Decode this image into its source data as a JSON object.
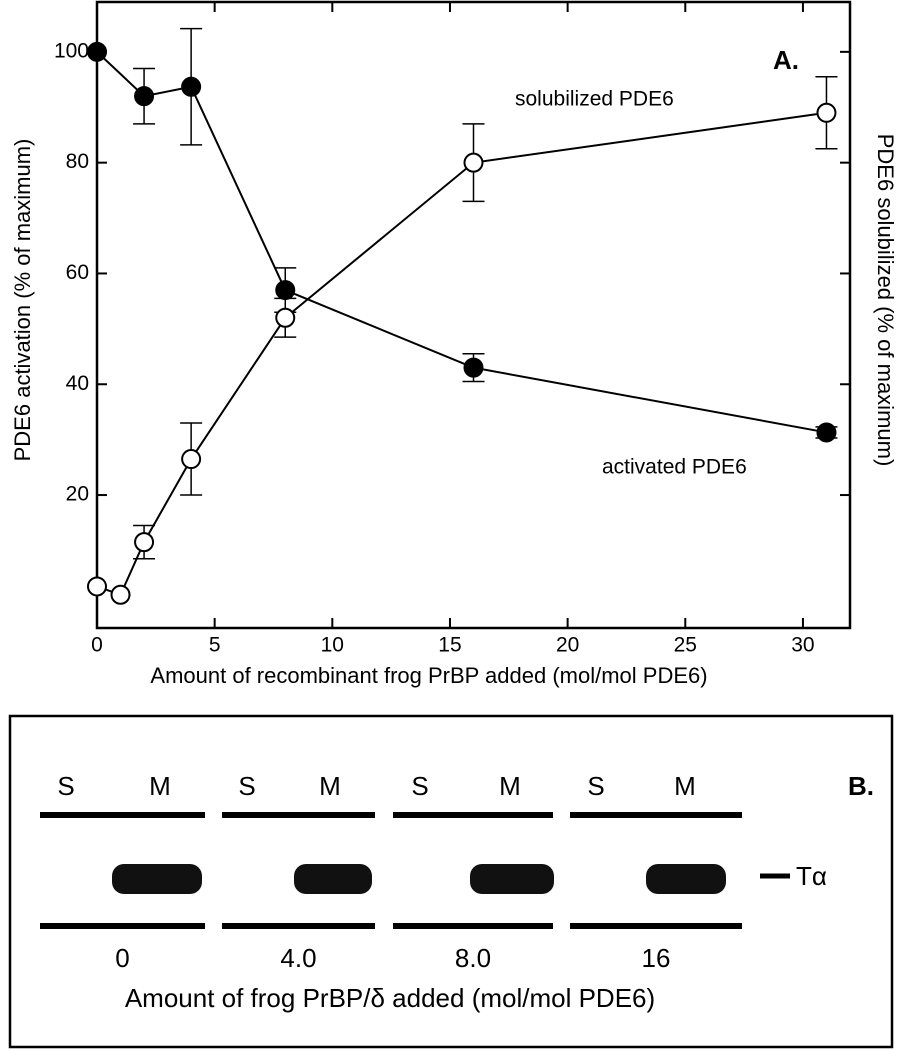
{
  "chart_data": {
    "type": "line",
    "xlabel": "Amount of recombinant frog PrBP added (mol/mol PDE6)",
    "ylabel": "PDE6 activation (% of maximum)",
    "y2label": "PDE6 solubilized (% of maximum)",
    "panel_label": "A.",
    "xlim": [
      0,
      32
    ],
    "ylim": [
      -4,
      109
    ],
    "xticks": [
      0,
      5,
      10,
      15,
      20,
      25,
      30
    ],
    "yticks": [
      20,
      40,
      60,
      80,
      100
    ],
    "series": [
      {
        "name": "activated PDE6",
        "color": "#000000",
        "filled": true,
        "x": [
          0,
          2,
          4,
          8,
          16,
          31
        ],
        "values": [
          100,
          92,
          93.7,
          57,
          43,
          31.3
        ],
        "errors": [
          0,
          5,
          10.5,
          4,
          2.5,
          1
        ]
      },
      {
        "name": "solubilized PDE6",
        "color": "#000000",
        "filled": false,
        "x": [
          0,
          1,
          2,
          4,
          8,
          16,
          31
        ],
        "values": [
          3.5,
          2,
          11.5,
          26.5,
          52,
          80,
          89
        ],
        "errors": [
          0,
          0,
          3,
          6.5,
          3.5,
          7,
          6.5
        ]
      }
    ]
  },
  "panel_b": {
    "panel_label": "B.",
    "band_label": "Tα",
    "lanes": [
      {
        "s": "S",
        "m": "M",
        "amount": "0"
      },
      {
        "s": "S",
        "m": "M",
        "amount": "4.0"
      },
      {
        "s": "S",
        "m": "M",
        "amount": "8.0"
      },
      {
        "s": "S",
        "m": "M",
        "amount": "16"
      }
    ],
    "xlabel": "Amount of frog PrBP/δ added (mol/mol PDE6)"
  }
}
